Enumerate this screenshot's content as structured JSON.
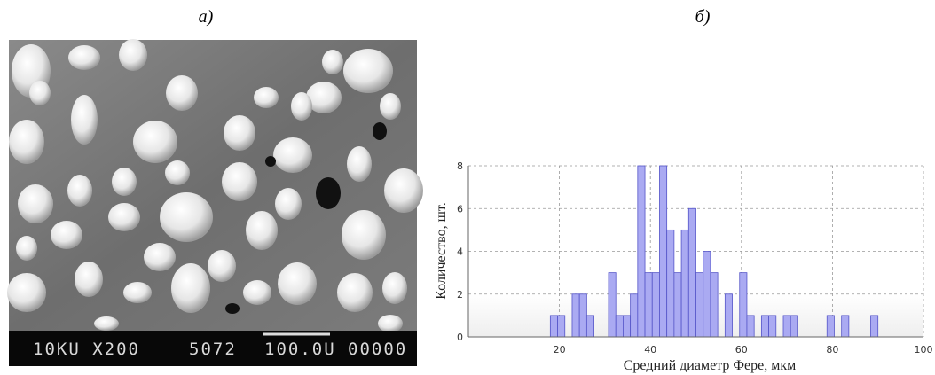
{
  "panels": {
    "left": "а)",
    "right": "б)"
  },
  "micrograph": {
    "caption": [
      "10KU X200",
      "5072",
      "100.0U",
      "00000"
    ]
  },
  "chart_data": {
    "type": "histogram",
    "x_label": "Средний диаметр Фере, мкм",
    "y_label": "Количество, шт.",
    "bins": [
      18,
      19.6,
      21.2,
      22.8,
      24.4,
      26,
      27.6,
      29.2,
      30.8,
      32.4,
      34,
      35.6,
      37.2,
      38.8,
      40.4,
      42,
      43.6,
      45.2,
      46.8,
      48.4,
      50,
      51.6,
      53.2,
      54.8,
      56.4,
      58,
      59.6,
      61.2,
      62.8,
      64.4,
      66,
      67.6,
      69.2,
      70.8,
      72.4,
      74,
      75.6,
      77.2,
      78.8,
      80.4,
      82,
      83.6,
      85.2,
      86.8,
      88.4,
      90
    ],
    "counts": [
      1,
      1,
      0,
      2,
      2,
      1,
      0,
      0,
      3,
      1,
      1,
      2,
      8,
      3,
      3,
      8,
      5,
      3,
      5,
      6,
      3,
      4,
      3,
      0,
      2,
      0,
      3,
      1,
      0,
      1,
      1,
      0,
      1,
      1,
      0,
      0,
      0,
      0,
      1,
      0,
      1,
      0,
      0,
      0,
      1
    ],
    "color": "#aaaaf2",
    "edge_color": "#5555c8",
    "xlim": [
      0,
      100
    ],
    "ylim": [
      0,
      8
    ],
    "xticks": [
      20,
      40,
      60,
      80,
      100
    ],
    "yticks": [
      0,
      2,
      4,
      6,
      8
    ],
    "grid": true
  }
}
